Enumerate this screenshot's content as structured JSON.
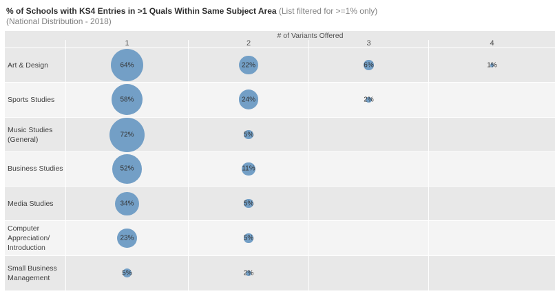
{
  "title": {
    "main": "% of Schools with KS4 Entries in >1 Quals Within Same Subject Area",
    "note": "(List filtered for >=1% only)",
    "subtitle": "(National Distribution - 2018)"
  },
  "column_axis": {
    "title": "# of Variants Offered",
    "labels": [
      "1",
      "2",
      "3",
      "4"
    ]
  },
  "chart_data": {
    "type": "scatter",
    "variant": "bubble-matrix",
    "title": "% of Schools with KS4 Entries in >1 Quals Within Same Subject Area (List filtered for >=1% only) (National Distribution - 2018)",
    "x_axis_label": "# of Variants Offered",
    "x_categories": [
      "1",
      "2",
      "3",
      "4"
    ],
    "unit": "%",
    "size_encoding": "bubble area proportional to percent of schools",
    "legend_position": "none",
    "rows": [
      {
        "label": "Art & Design",
        "label_lines": [
          "Art & Design"
        ],
        "values": [
          64,
          22,
          6,
          1
        ],
        "value_labels": [
          "64%",
          "22%",
          "6%",
          "1%"
        ]
      },
      {
        "label": "Sports Studies",
        "label_lines": [
          "Sports Studies"
        ],
        "values": [
          58,
          24,
          2,
          null
        ],
        "value_labels": [
          "58%",
          "24%",
          "2%",
          null
        ]
      },
      {
        "label": "Music Studies (General)",
        "label_lines": [
          "Music Studies",
          "(General)"
        ],
        "values": [
          72,
          5,
          null,
          null
        ],
        "value_labels": [
          "72%",
          "5%",
          null,
          null
        ]
      },
      {
        "label": "Business Studies",
        "label_lines": [
          "Business Studies"
        ],
        "values": [
          52,
          11,
          null,
          null
        ],
        "value_labels": [
          "52%",
          "11%",
          null,
          null
        ]
      },
      {
        "label": "Media Studies",
        "label_lines": [
          "Media Studies"
        ],
        "values": [
          34,
          5,
          null,
          null
        ],
        "value_labels": [
          "34%",
          "5%",
          null,
          null
        ]
      },
      {
        "label": "Computer Appreciation/Introduction",
        "label_lines": [
          "Computer",
          "Appreciation/",
          "Introduction"
        ],
        "values": [
          23,
          5,
          null,
          null
        ],
        "value_labels": [
          "23%",
          "5%",
          null,
          null
        ]
      },
      {
        "label": "Small Business Management",
        "label_lines": [
          "Small Business",
          "Management"
        ],
        "values": [
          5,
          2,
          null,
          null
        ],
        "value_labels": [
          "5%",
          "2%",
          null,
          null
        ]
      }
    ]
  },
  "style": {
    "bubble_color": "#739fc6",
    "band_dark": "#e8e8e8",
    "band_light": "#f4f4f4",
    "title_color": "#2e2e2e",
    "muted_text_color": "#828282",
    "value_text_color": "#333333"
  }
}
